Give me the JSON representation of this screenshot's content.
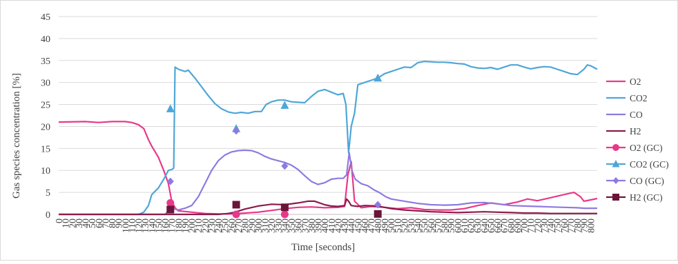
{
  "chart_data": {
    "type": "line",
    "title": "",
    "xlabel": "Time [seconds]",
    "ylabel": "Gas species concentration [%]",
    "xlim": [
      0,
      810
    ],
    "ylim": [
      0,
      45
    ],
    "x_ticks": [
      0,
      10,
      20,
      30,
      40,
      50,
      60,
      70,
      80,
      90,
      100,
      110,
      120,
      130,
      140,
      150,
      160,
      170,
      180,
      190,
      200,
      210,
      220,
      230,
      240,
      250,
      260,
      270,
      280,
      290,
      300,
      310,
      320,
      330,
      340,
      350,
      360,
      370,
      380,
      390,
      400,
      410,
      420,
      430,
      440,
      450,
      460,
      470,
      480,
      490,
      500,
      510,
      520,
      530,
      540,
      550,
      560,
      570,
      580,
      590,
      600,
      610,
      620,
      630,
      640,
      650,
      660,
      670,
      680,
      690,
      700,
      710,
      720,
      730,
      740,
      750,
      760,
      770,
      780,
      790,
      800
    ],
    "y_ticks": [
      0,
      5,
      10,
      15,
      20,
      25,
      30,
      35,
      40,
      45
    ],
    "grid": "horizontal",
    "legend_position": "right",
    "series": [
      {
        "name": "O2",
        "kind": "line",
        "color": "#e8388a",
        "points": [
          [
            0,
            21
          ],
          [
            40,
            21.1
          ],
          [
            60,
            20.9
          ],
          [
            80,
            21.1
          ],
          [
            100,
            21.1
          ],
          [
            110,
            20.9
          ],
          [
            120,
            20.4
          ],
          [
            128,
            19.5
          ],
          [
            135,
            17
          ],
          [
            140,
            15.5
          ],
          [
            150,
            13
          ],
          [
            158,
            10
          ],
          [
            165,
            7
          ],
          [
            170,
            3
          ],
          [
            175,
            1.5
          ],
          [
            180,
            0.8
          ],
          [
            200,
            0.5
          ],
          [
            220,
            0.2
          ],
          [
            240,
            0.1
          ],
          [
            260,
            0.1
          ],
          [
            280,
            0.3
          ],
          [
            300,
            0.5
          ],
          [
            320,
            0.9
          ],
          [
            340,
            1.3
          ],
          [
            360,
            1.6
          ],
          [
            380,
            1.7
          ],
          [
            400,
            1.5
          ],
          [
            420,
            1.6
          ],
          [
            430,
            1.8
          ],
          [
            435,
            9
          ],
          [
            440,
            12
          ],
          [
            445,
            3
          ],
          [
            455,
            1.5
          ],
          [
            470,
            1.8
          ],
          [
            490,
            1.6
          ],
          [
            510,
            1.3
          ],
          [
            530,
            1.5
          ],
          [
            550,
            1.1
          ],
          [
            570,
            1
          ],
          [
            590,
            1
          ],
          [
            610,
            1.3
          ],
          [
            630,
            2
          ],
          [
            650,
            2.6
          ],
          [
            670,
            2.2
          ],
          [
            690,
            2.8
          ],
          [
            705,
            3.5
          ],
          [
            720,
            3.1
          ],
          [
            740,
            3.8
          ],
          [
            760,
            4.5
          ],
          [
            775,
            5
          ],
          [
            785,
            4
          ],
          [
            790,
            3
          ],
          [
            800,
            3.3
          ],
          [
            810,
            3.6
          ]
        ]
      },
      {
        "name": "CO2",
        "kind": "line",
        "color": "#4da6d8",
        "points": [
          [
            0,
            0
          ],
          [
            120,
            0
          ],
          [
            128,
            0.5
          ],
          [
            135,
            2
          ],
          [
            140,
            4.5
          ],
          [
            150,
            6
          ],
          [
            158,
            8
          ],
          [
            165,
            10
          ],
          [
            170,
            10.2
          ],
          [
            173,
            10.5
          ],
          [
            175,
            33.5
          ],
          [
            180,
            33
          ],
          [
            190,
            32.5
          ],
          [
            195,
            32.8
          ],
          [
            205,
            31
          ],
          [
            215,
            29
          ],
          [
            225,
            27
          ],
          [
            235,
            25.2
          ],
          [
            245,
            24
          ],
          [
            255,
            23.3
          ],
          [
            265,
            23
          ],
          [
            275,
            23.2
          ],
          [
            285,
            23
          ],
          [
            295,
            23.4
          ],
          [
            305,
            23.4
          ],
          [
            312,
            25
          ],
          [
            320,
            25.6
          ],
          [
            330,
            26
          ],
          [
            340,
            26
          ],
          [
            350,
            25.6
          ],
          [
            360,
            25.5
          ],
          [
            370,
            25.4
          ],
          [
            380,
            26.8
          ],
          [
            390,
            28
          ],
          [
            400,
            28.4
          ],
          [
            410,
            27.8
          ],
          [
            420,
            27.2
          ],
          [
            428,
            27.5
          ],
          [
            432,
            25
          ],
          [
            436,
            14
          ],
          [
            440,
            20
          ],
          [
            445,
            23
          ],
          [
            450,
            29.5
          ],
          [
            460,
            30
          ],
          [
            470,
            30.5
          ],
          [
            480,
            31
          ],
          [
            490,
            32
          ],
          [
            500,
            32.5
          ],
          [
            510,
            33
          ],
          [
            520,
            33.5
          ],
          [
            530,
            33.4
          ],
          [
            540,
            34.5
          ],
          [
            550,
            34.8
          ],
          [
            560,
            34.7
          ],
          [
            570,
            34.6
          ],
          [
            580,
            34.6
          ],
          [
            590,
            34.5
          ],
          [
            600,
            34.3
          ],
          [
            610,
            34.2
          ],
          [
            620,
            33.6
          ],
          [
            630,
            33.3
          ],
          [
            640,
            33.2
          ],
          [
            650,
            33.4
          ],
          [
            660,
            33
          ],
          [
            670,
            33.5
          ],
          [
            680,
            34
          ],
          [
            690,
            34
          ],
          [
            700,
            33.5
          ],
          [
            710,
            33.1
          ],
          [
            720,
            33.4
          ],
          [
            730,
            33.6
          ],
          [
            740,
            33.5
          ],
          [
            750,
            33
          ],
          [
            760,
            32.5
          ],
          [
            770,
            32
          ],
          [
            780,
            31.8
          ],
          [
            790,
            33
          ],
          [
            795,
            34
          ],
          [
            800,
            33.8
          ],
          [
            810,
            33
          ]
        ]
      },
      {
        "name": "CO",
        "kind": "line",
        "color": "#8e7ae0",
        "points": [
          [
            0,
            0
          ],
          [
            160,
            0
          ],
          [
            165,
            0.8
          ],
          [
            170,
            1.2
          ],
          [
            175,
            1.2
          ],
          [
            180,
            1
          ],
          [
            190,
            1.4
          ],
          [
            200,
            2
          ],
          [
            210,
            4
          ],
          [
            220,
            7
          ],
          [
            230,
            10
          ],
          [
            240,
            12.2
          ],
          [
            250,
            13.5
          ],
          [
            260,
            14.2
          ],
          [
            270,
            14.5
          ],
          [
            280,
            14.6
          ],
          [
            290,
            14.5
          ],
          [
            300,
            14
          ],
          [
            310,
            13.2
          ],
          [
            320,
            12.6
          ],
          [
            330,
            12.2
          ],
          [
            340,
            11.8
          ],
          [
            350,
            11.2
          ],
          [
            360,
            10.2
          ],
          [
            370,
            8.8
          ],
          [
            380,
            7.5
          ],
          [
            390,
            6.8
          ],
          [
            400,
            7.2
          ],
          [
            410,
            8
          ],
          [
            420,
            8.2
          ],
          [
            428,
            8.2
          ],
          [
            433,
            9
          ],
          [
            437,
            14
          ],
          [
            441,
            10
          ],
          [
            446,
            8
          ],
          [
            455,
            7
          ],
          [
            465,
            6.5
          ],
          [
            475,
            5.5
          ],
          [
            482,
            5
          ],
          [
            492,
            4
          ],
          [
            500,
            3.5
          ],
          [
            520,
            3
          ],
          [
            540,
            2.5
          ],
          [
            560,
            2.2
          ],
          [
            580,
            2.1
          ],
          [
            600,
            2.2
          ],
          [
            620,
            2.6
          ],
          [
            640,
            2.7
          ],
          [
            660,
            2.4
          ],
          [
            680,
            2
          ],
          [
            700,
            1.9
          ],
          [
            720,
            1.8
          ],
          [
            740,
            1.7
          ],
          [
            760,
            1.6
          ],
          [
            780,
            1.5
          ],
          [
            790,
            1.4
          ],
          [
            810,
            1.4
          ]
        ]
      },
      {
        "name": "H2",
        "kind": "line",
        "color": "#8b1a4a",
        "points": [
          [
            0,
            0
          ],
          [
            240,
            0
          ],
          [
            255,
            0.2
          ],
          [
            265,
            0.5
          ],
          [
            280,
            1.2
          ],
          [
            300,
            1.9
          ],
          [
            320,
            2.3
          ],
          [
            340,
            2.2
          ],
          [
            360,
            2.6
          ],
          [
            375,
            3
          ],
          [
            385,
            3
          ],
          [
            400,
            2.2
          ],
          [
            410,
            1.9
          ],
          [
            420,
            1.8
          ],
          [
            430,
            2
          ],
          [
            433,
            3.5
          ],
          [
            436,
            3
          ],
          [
            440,
            2
          ],
          [
            450,
            1.8
          ],
          [
            460,
            2
          ],
          [
            480,
            1.9
          ],
          [
            500,
            1.3
          ],
          [
            520,
            1
          ],
          [
            540,
            0.8
          ],
          [
            560,
            0.6
          ],
          [
            580,
            0.5
          ],
          [
            600,
            0.4
          ],
          [
            620,
            0.5
          ],
          [
            640,
            0.6
          ],
          [
            660,
            0.5
          ],
          [
            680,
            0.4
          ],
          [
            700,
            0.3
          ],
          [
            720,
            0.3
          ],
          [
            740,
            0.2
          ],
          [
            760,
            0.2
          ],
          [
            780,
            0.2
          ],
          [
            810,
            0.2
          ]
        ]
      },
      {
        "name": "O2 (GC)",
        "kind": "marker",
        "marker": "circle",
        "color": "#e8388a",
        "points": [
          [
            168,
            2.6
          ],
          [
            267,
            0
          ],
          [
            340,
            0
          ]
        ]
      },
      {
        "name": "CO2 (GC)",
        "kind": "marker",
        "marker": "triangle",
        "color": "#4da6d8",
        "points": [
          [
            168,
            24
          ],
          [
            267,
            19.5
          ],
          [
            340,
            24.8
          ],
          [
            480,
            31
          ]
        ]
      },
      {
        "name": "CO (GC)",
        "kind": "marker",
        "marker": "diamond",
        "color": "#8e7ae0",
        "points": [
          [
            168,
            7.5
          ],
          [
            267,
            19
          ],
          [
            340,
            11
          ],
          [
            480,
            2.2
          ]
        ]
      },
      {
        "name": "H2 (GC)",
        "kind": "marker",
        "marker": "square",
        "color": "#6b1538",
        "points": [
          [
            168,
            1.1
          ],
          [
            267,
            2.2
          ],
          [
            340,
            1.6
          ],
          [
            480,
            0.1
          ]
        ]
      }
    ]
  }
}
